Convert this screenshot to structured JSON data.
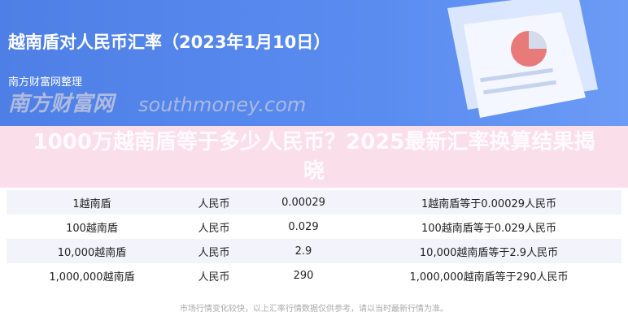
{
  "header": {
    "title": "越南盾对人民币汇率（2023年1月10日）",
    "subtitle": "南方财富网整理"
  },
  "overlay_title": "1000万越南盾等于多少人民币？2025最新汇率换算结果揭晓",
  "rows": [
    [
      "1越南盾",
      "人民币",
      "0.00029",
      "1越南盾等于0.00029人民币"
    ],
    [
      "100越南盾",
      "人民币",
      "0.029",
      "100越南盾等于0.029人民币"
    ],
    [
      "10,000越南盾",
      "人民币",
      "2.9",
      "10,000越南盾等于2.9人民币"
    ],
    [
      "1,000,000越南盾",
      "人民币",
      "290",
      "1,000,000越南盾等于290人民币"
    ]
  ],
  "watermark": {
    "cn": "南方财富网",
    "en": "southmoney.com"
  },
  "footer": "市场行情变化较快，以上汇率行情数据仅供参考，请以当时最新行情为准。"
}
